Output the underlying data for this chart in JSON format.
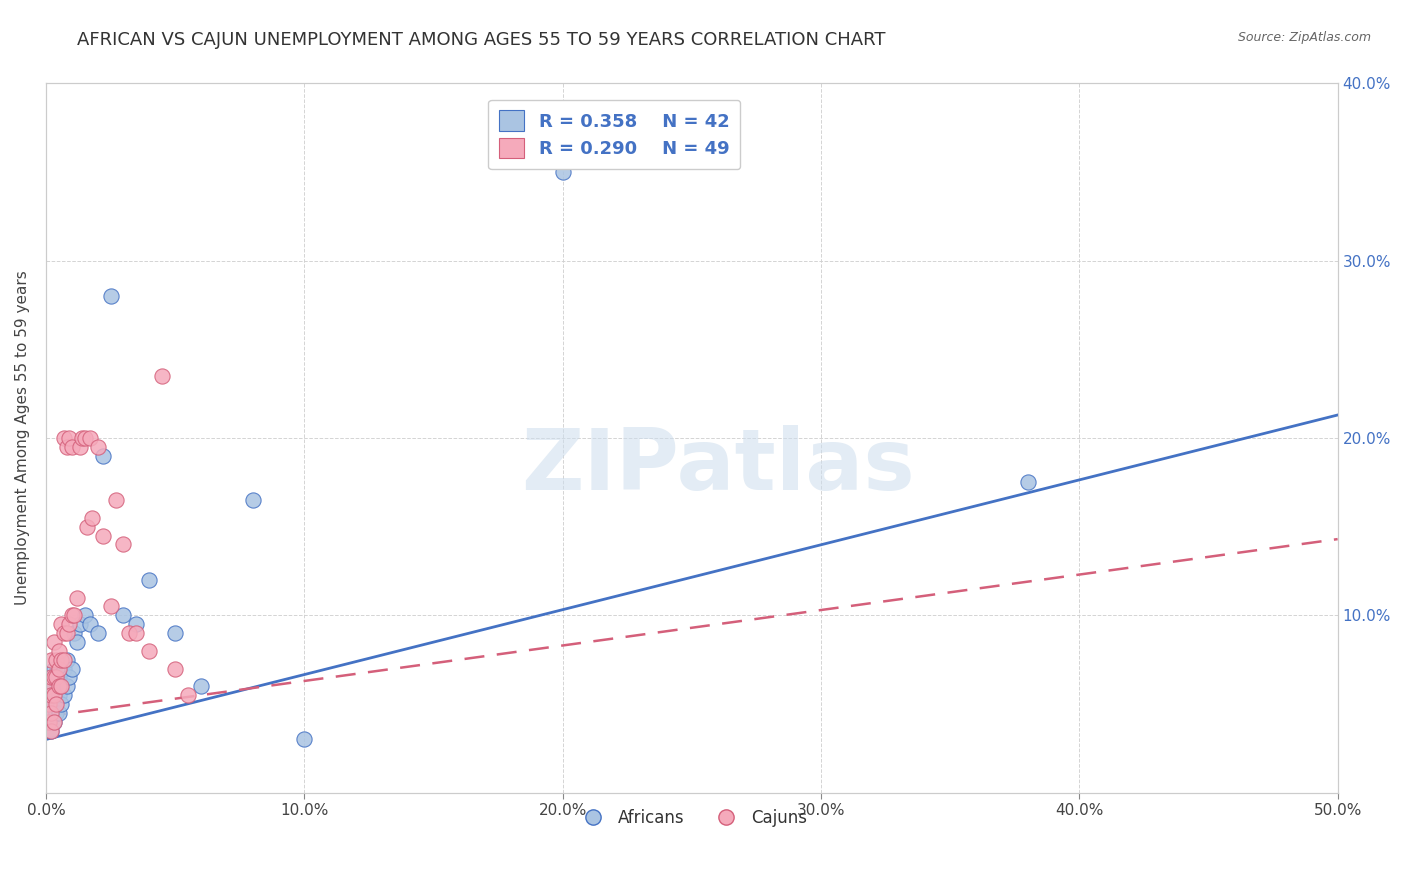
{
  "title": "AFRICAN VS CAJUN UNEMPLOYMENT AMONG AGES 55 TO 59 YEARS CORRELATION CHART",
  "source": "Source: ZipAtlas.com",
  "ylabel": "Unemployment Among Ages 55 to 59 years",
  "xlabel": "",
  "xlim": [
    0.0,
    0.5
  ],
  "ylim": [
    0.0,
    0.4
  ],
  "xticks": [
    0.0,
    0.1,
    0.2,
    0.3,
    0.4,
    0.5
  ],
  "yticks": [
    0.0,
    0.1,
    0.2,
    0.3,
    0.4
  ],
  "xticklabels": [
    "0.0%",
    "10.0%",
    "20.0%",
    "30.0%",
    "40.0%",
    "50.0%"
  ],
  "yticklabels": [
    "",
    "",
    "",
    "",
    ""
  ],
  "right_yticklabels": [
    "",
    "10.0%",
    "20.0%",
    "30.0%",
    "40.0%"
  ],
  "africans_R": "0.358",
  "africans_N": "42",
  "cajuns_R": "0.290",
  "cajuns_N": "49",
  "africans_color": "#aac4e2",
  "cajuns_color": "#f5aabb",
  "africans_line_color": "#4472c4",
  "cajuns_line_color": "#d45f7a",
  "legend_text_color": "#4472c4",
  "africans_x": [
    0.001,
    0.001,
    0.001,
    0.002,
    0.002,
    0.002,
    0.002,
    0.003,
    0.003,
    0.003,
    0.003,
    0.004,
    0.004,
    0.004,
    0.005,
    0.005,
    0.005,
    0.006,
    0.006,
    0.007,
    0.007,
    0.008,
    0.008,
    0.009,
    0.01,
    0.011,
    0.012,
    0.013,
    0.015,
    0.017,
    0.02,
    0.022,
    0.025,
    0.03,
    0.035,
    0.04,
    0.05,
    0.06,
    0.08,
    0.1,
    0.2,
    0.38
  ],
  "africans_y": [
    0.04,
    0.05,
    0.06,
    0.035,
    0.045,
    0.055,
    0.065,
    0.04,
    0.05,
    0.06,
    0.07,
    0.045,
    0.055,
    0.065,
    0.045,
    0.055,
    0.065,
    0.05,
    0.06,
    0.055,
    0.07,
    0.06,
    0.075,
    0.065,
    0.07,
    0.09,
    0.085,
    0.095,
    0.1,
    0.095,
    0.09,
    0.19,
    0.28,
    0.1,
    0.095,
    0.12,
    0.09,
    0.06,
    0.165,
    0.03,
    0.35,
    0.175
  ],
  "cajuns_x": [
    0.001,
    0.001,
    0.001,
    0.002,
    0.002,
    0.002,
    0.002,
    0.002,
    0.003,
    0.003,
    0.003,
    0.003,
    0.004,
    0.004,
    0.004,
    0.005,
    0.005,
    0.005,
    0.006,
    0.006,
    0.006,
    0.007,
    0.007,
    0.007,
    0.008,
    0.008,
    0.009,
    0.009,
    0.01,
    0.01,
    0.011,
    0.012,
    0.013,
    0.014,
    0.015,
    0.016,
    0.017,
    0.018,
    0.02,
    0.022,
    0.025,
    0.027,
    0.03,
    0.032,
    0.035,
    0.04,
    0.045,
    0.05,
    0.055
  ],
  "cajuns_y": [
    0.04,
    0.05,
    0.06,
    0.035,
    0.045,
    0.055,
    0.065,
    0.075,
    0.04,
    0.055,
    0.065,
    0.085,
    0.05,
    0.065,
    0.075,
    0.06,
    0.07,
    0.08,
    0.06,
    0.075,
    0.095,
    0.075,
    0.09,
    0.2,
    0.09,
    0.195,
    0.095,
    0.2,
    0.1,
    0.195,
    0.1,
    0.11,
    0.195,
    0.2,
    0.2,
    0.15,
    0.2,
    0.155,
    0.195,
    0.145,
    0.105,
    0.165,
    0.14,
    0.09,
    0.09,
    0.08,
    0.235,
    0.07,
    0.055
  ],
  "africans_trendline": [
    0.03,
    0.213
  ],
  "cajuns_trendline": [
    0.043,
    0.143
  ],
  "watermark_text": "ZIPatlas",
  "background_color": "#ffffff",
  "grid_color": "#d0d0d0",
  "title_fontsize": 13,
  "axis_fontsize": 11,
  "tick_fontsize": 11
}
